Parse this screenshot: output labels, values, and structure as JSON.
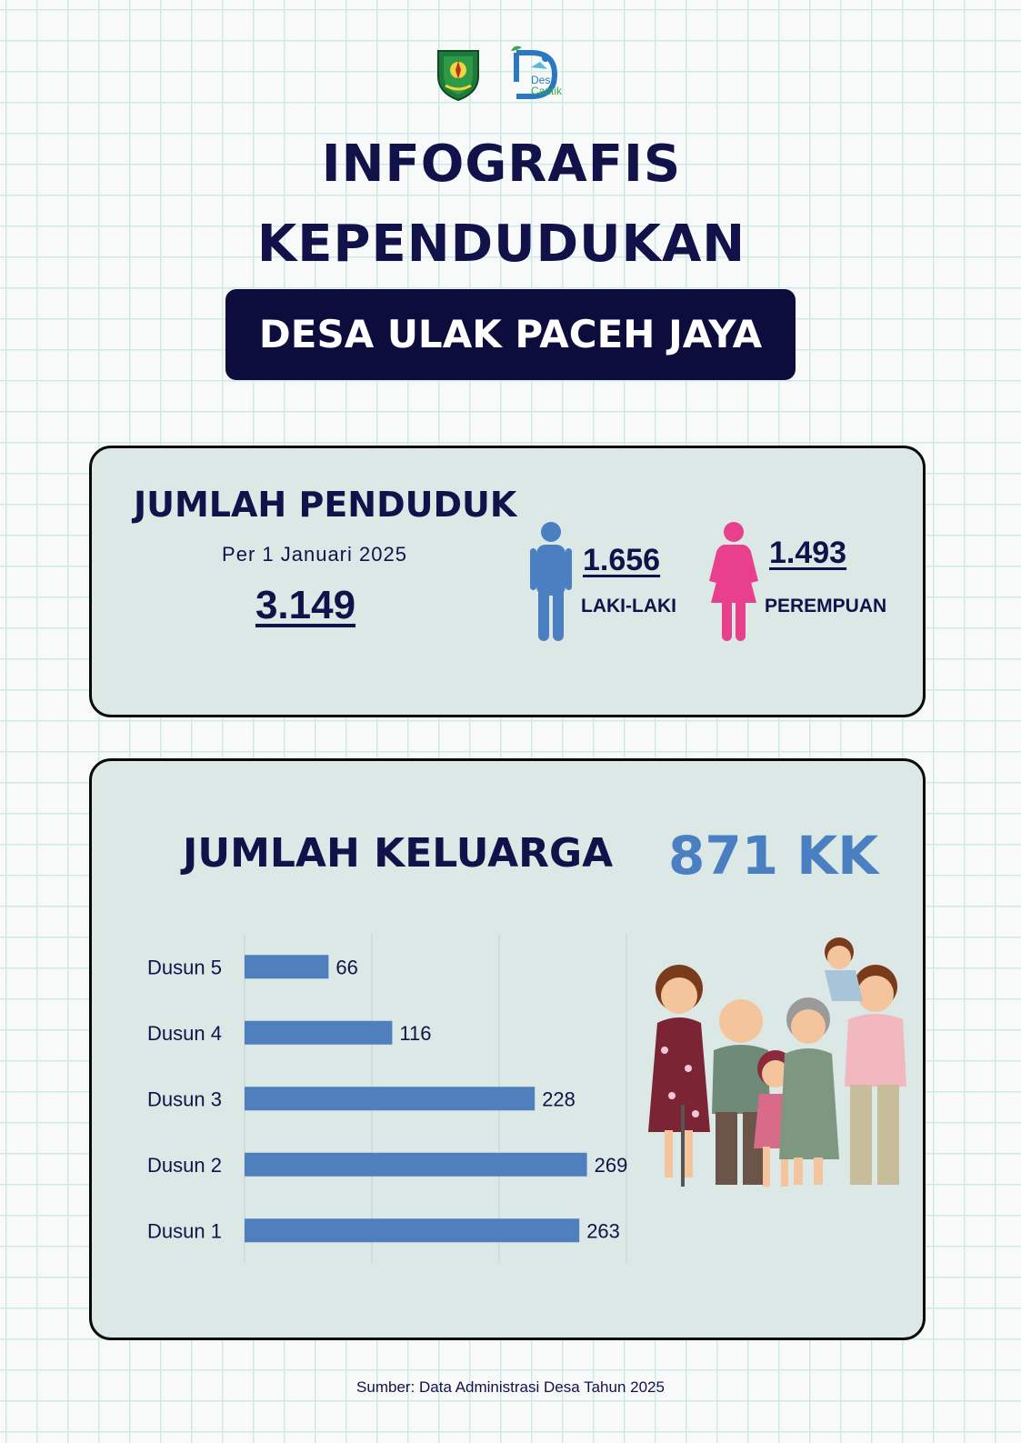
{
  "header": {
    "title_line1": "INFOGRAFIS",
    "title_line2": "KEPENDUDUKAN",
    "village_banner": "DESA ULAK PACEH JAYA",
    "logo_text_line1": "Desa",
    "logo_text_line2": "Cantik"
  },
  "population": {
    "heading": "JUMLAH PENDUDUK",
    "date": "Per 1 Januari 2025",
    "total": "3.149",
    "male_count": "1.656",
    "male_label": "LAKI-LAKI",
    "female_count": "1.493",
    "female_label": "PEREMPUAN",
    "colors": {
      "male": "#4a7fc1",
      "female": "#e8408c"
    }
  },
  "families": {
    "heading": "JUMLAH KELUARGA",
    "total": "871 KK",
    "color": "#4a7fc1"
  },
  "chart_data": {
    "type": "bar",
    "orientation": "horizontal",
    "categories": [
      "Dusun 5",
      "Dusun 4",
      "Dusun 3",
      "Dusun 2",
      "Dusun 1"
    ],
    "values": [
      66,
      116,
      228,
      269,
      263
    ],
    "title": "",
    "xlabel": "",
    "ylabel": "",
    "xlim": [
      0,
      300
    ],
    "grid": true,
    "data_labels": true,
    "bar_color": "#4f7fbd"
  },
  "footer": {
    "source": "Sumber: Data Administrasi Desa Tahun 2025"
  }
}
